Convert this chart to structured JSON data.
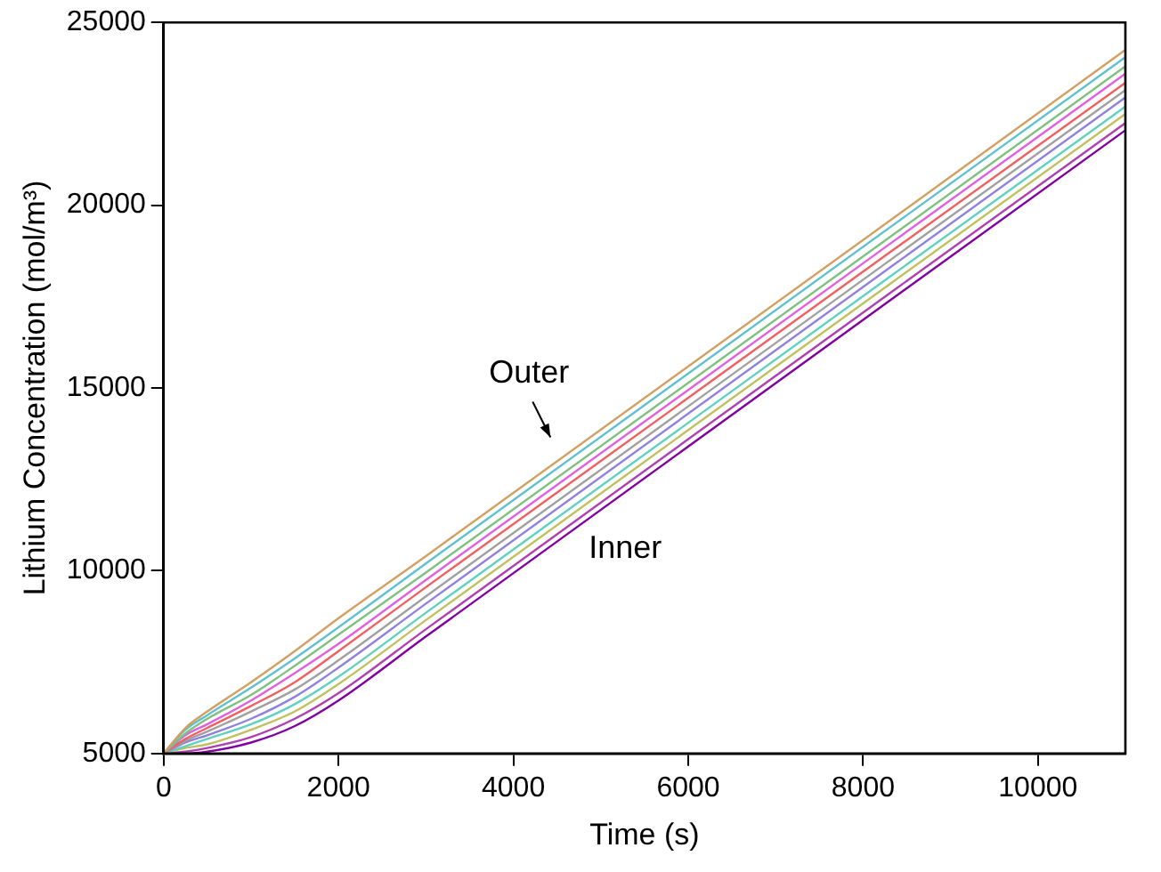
{
  "chart_data": {
    "type": "line",
    "xlabel": "Time (s)",
    "ylabel": "Lithium Concentration (mol/m³)",
    "x": [
      0,
      250,
      500,
      1000,
      1500,
      2000,
      3000,
      11000
    ],
    "xlim": [
      0,
      11000
    ],
    "xticks": [
      0,
      2000,
      4000,
      6000,
      8000,
      10000
    ],
    "ylim": [
      5000,
      25000
    ],
    "yticks": [
      5000,
      10000,
      15000,
      20000,
      25000
    ],
    "grid": false,
    "legend": false,
    "marker": "none",
    "line_style": "solid",
    "annotations": [
      "Outer",
      "Inner"
    ],
    "series": [
      {
        "color": "#d2a060",
        "values": [
          5000,
          5700,
          6150,
          6950,
          7800,
          8700,
          10400,
          24250
        ]
      },
      {
        "color": "#60c0d0",
        "values": [
          5000,
          5650,
          6050,
          6800,
          7600,
          8450,
          10200,
          24050
        ]
      },
      {
        "color": "#80c080",
        "values": [
          5000,
          5550,
          5950,
          6600,
          7400,
          8250,
          9950,
          23800
        ]
      },
      {
        "color": "#e060e0",
        "values": [
          5000,
          5500,
          5800,
          6450,
          7200,
          8000,
          9750,
          23600
        ]
      },
      {
        "color": "#f06060",
        "values": [
          5000,
          5400,
          5700,
          6300,
          6950,
          7800,
          9550,
          23350
        ]
      },
      {
        "color": "#a0a0a0",
        "values": [
          5000,
          5350,
          5600,
          6150,
          6750,
          7550,
          9300,
          23150
        ]
      },
      {
        "color": "#9080e0",
        "values": [
          5000,
          5300,
          5500,
          5950,
          6550,
          7350,
          9100,
          22950
        ]
      },
      {
        "color": "#60d0c0",
        "values": [
          5000,
          5200,
          5400,
          5800,
          6350,
          7100,
          8850,
          22700
        ]
      },
      {
        "color": "#c0c060",
        "values": [
          5000,
          5150,
          5250,
          5650,
          6150,
          6900,
          8650,
          22500
        ]
      },
      {
        "color": "#b040b0",
        "values": [
          5000,
          5050,
          5150,
          5450,
          5950,
          6650,
          8400,
          22250
        ]
      },
      {
        "color": "#8000a0",
        "values": [
          5000,
          5000,
          5050,
          5300,
          5750,
          6450,
          8200,
          22050
        ]
      }
    ]
  }
}
